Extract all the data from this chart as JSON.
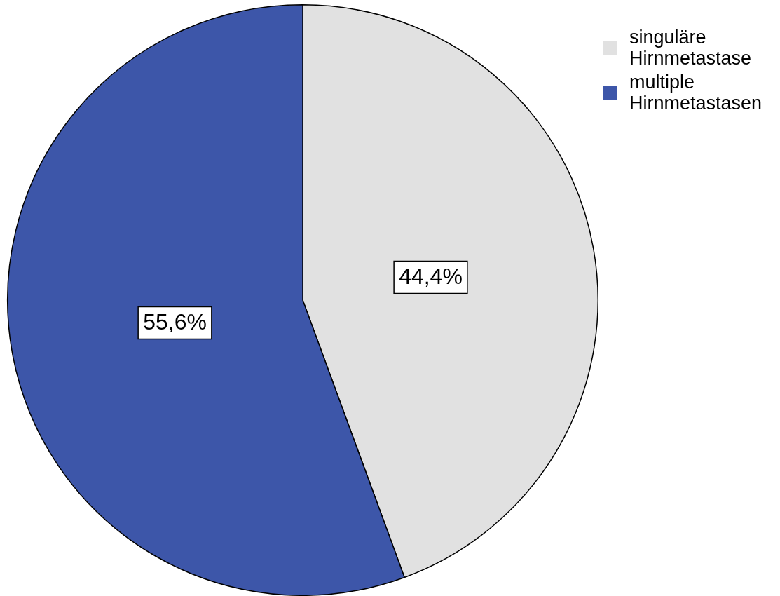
{
  "chart_data": {
    "type": "pie",
    "categories": [
      "singuläre Hirnmetastase",
      "multiple Hirnmetastasen"
    ],
    "values": [
      44.4,
      55.6
    ],
    "colors": [
      "#e1e1e1",
      "#3d56a9"
    ],
    "value_labels": [
      "44,4%",
      "55,6%"
    ],
    "legend": "top right"
  }
}
